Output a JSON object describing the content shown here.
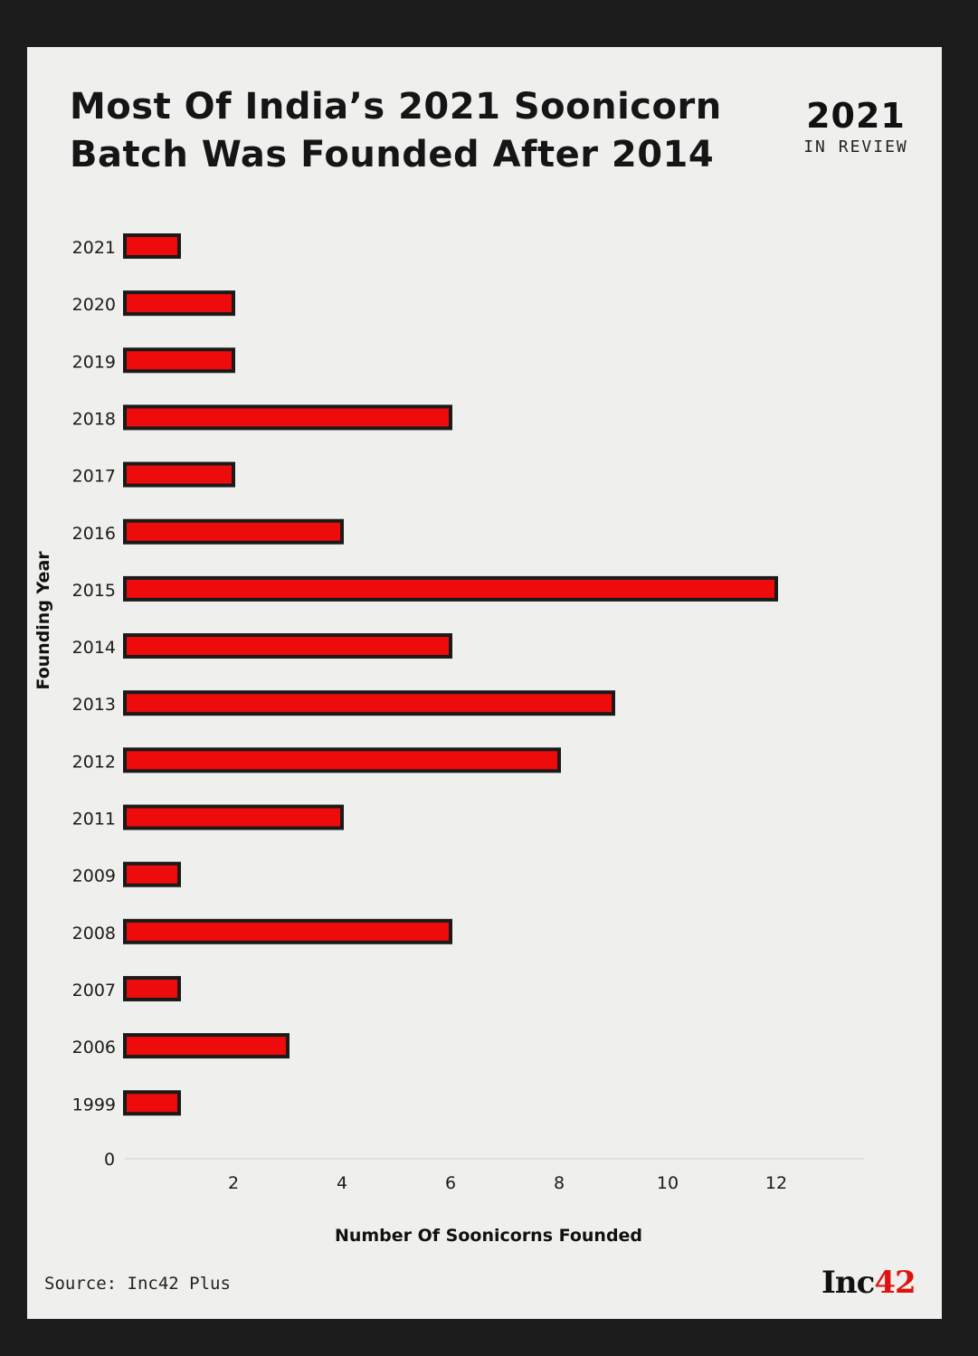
{
  "header": {
    "title_line1": "Most Of India’s 2021 Soonicorn",
    "title_line2": "Batch Was Founded After 2014",
    "badge_year": "2021",
    "badge_sub": "IN REVIEW"
  },
  "footer": {
    "source": "Source: Inc42 Plus",
    "logo_main": "Inc",
    "logo_accent": "42"
  },
  "colors": {
    "bar_fill": "#ee0b0b",
    "bar_stroke": "#1a1a1a",
    "card_bg": "#efefed",
    "frame_bg": "#1c1c1c"
  },
  "chart_data": {
    "type": "bar",
    "orientation": "horizontal",
    "xlabel": "Number Of Soonicorns Founded",
    "ylabel": "Founding Year",
    "categories": [
      "2021",
      "2020",
      "2019",
      "2018",
      "2017",
      "2016",
      "2015",
      "2014",
      "2013",
      "2012",
      "2011",
      "2009",
      "2008",
      "2007",
      "2006",
      "1999"
    ],
    "values": [
      1,
      2,
      2,
      6,
      2,
      4,
      12,
      6,
      9,
      8,
      4,
      1,
      6,
      1,
      3,
      1
    ],
    "x_ticks": [
      "2",
      "4",
      "6",
      "8",
      "10",
      "12"
    ],
    "zero_label": "0",
    "xlim": [
      0,
      13.5
    ],
    "grid": false,
    "legend": "none"
  }
}
